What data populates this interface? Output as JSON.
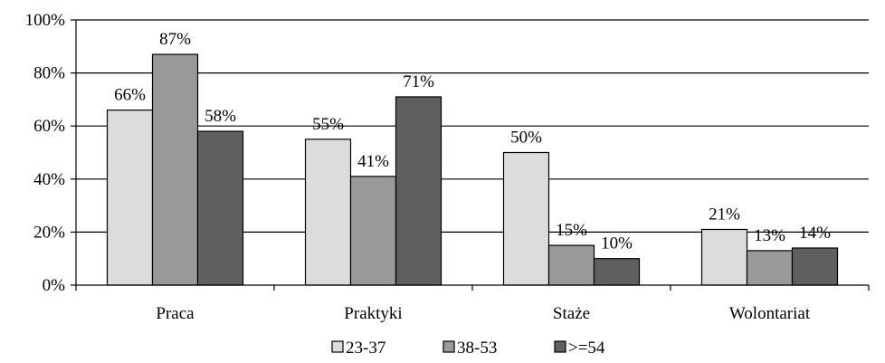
{
  "chart_data": {
    "type": "bar",
    "categories": [
      "Praca",
      "Praktyki",
      "Staże",
      "Wolontariat"
    ],
    "series": [
      {
        "name": "23-37",
        "values": [
          66,
          55,
          50,
          21
        ],
        "labels": [
          "66%",
          "55%",
          "50%",
          "21%"
        ],
        "color": "#dcdcdc"
      },
      {
        "name": "38-53",
        "values": [
          87,
          41,
          15,
          13
        ],
        "labels": [
          "87%",
          "41%",
          "15%",
          "13%"
        ],
        "color": "#999999"
      },
      {
        "name": ">=54",
        "values": [
          58,
          71,
          10,
          14
        ],
        "labels": [
          "58%",
          "71%",
          "10%",
          "14%"
        ],
        "color": "#5f5f5f"
      }
    ],
    "yticks": [
      "0%",
      "20%",
      "40%",
      "60%",
      "80%",
      "100%"
    ],
    "ylim": [
      0,
      100
    ],
    "grid": true,
    "legend_position": "bottom"
  }
}
